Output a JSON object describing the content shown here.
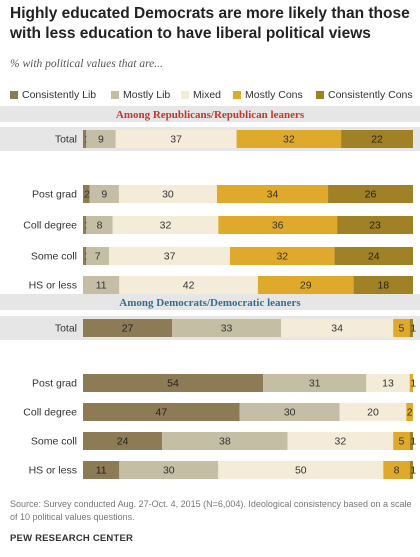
{
  "title": "Highly educated Democrats are more likely than those with less education to have liberal political views",
  "subtitle": "% with political values that are...",
  "source_note": "Source: Survey conducted Aug. 27-Oct. 4, 2015 (N=6,004). Ideological consistency based on a scale of 10 political values questions.",
  "credit": "PEW RESEARCH CENTER",
  "colors": {
    "consistently_lib": "#8c7b55",
    "mostly_lib": "#c3bea4",
    "mixed": "#f4ecd9",
    "mostly_cons": "#dfaa2b",
    "consistently_cons": "#a08125",
    "rep_heading": "#c0392b",
    "dem_heading": "#31708f",
    "band": "#e6e6e6"
  },
  "chart_data": {
    "type": "bar",
    "stacked": true,
    "orientation": "horizontal",
    "legend_position": "top",
    "series_names": [
      "Consistently Lib",
      "Mostly Lib",
      "Mixed",
      "Mostly Cons",
      "Consistently Cons"
    ],
    "groups": [
      {
        "heading": "Among Republicans/Republican leaners",
        "rows": [
          {
            "label": "Total",
            "values": [
              1,
              9,
              37,
              32,
              22
            ],
            "shaded": true
          },
          {
            "label": "Post grad",
            "values": [
              2,
              9,
              30,
              34,
              26
            ]
          },
          {
            "label": "Coll degree",
            "values": [
              1,
              8,
              32,
              36,
              23
            ]
          },
          {
            "label": "Some coll",
            "values": [
              1,
              7,
              37,
              32,
              24
            ]
          },
          {
            "label": "HS or less",
            "values": [
              0,
              11,
              42,
              29,
              18
            ],
            "hide_labels": [
              true,
              false,
              false,
              false,
              false
            ]
          }
        ]
      },
      {
        "heading": "Among Democrats/Democratic leaners",
        "rows": [
          {
            "label": "Total",
            "values": [
              27,
              33,
              34,
              5,
              1
            ],
            "shaded": true
          },
          {
            "label": "Post grad",
            "values": [
              54,
              31,
              13,
              1,
              0
            ],
            "hide_labels": [
              false,
              false,
              false,
              false,
              true
            ]
          },
          {
            "label": "Coll degree",
            "values": [
              47,
              30,
              20,
              2,
              0
            ],
            "hide_labels": [
              false,
              false,
              false,
              false,
              true
            ]
          },
          {
            "label": "Some coll",
            "values": [
              24,
              38,
              32,
              5,
              1
            ]
          },
          {
            "label": "HS or less",
            "values": [
              11,
              30,
              50,
              8,
              1
            ]
          }
        ]
      }
    ]
  }
}
